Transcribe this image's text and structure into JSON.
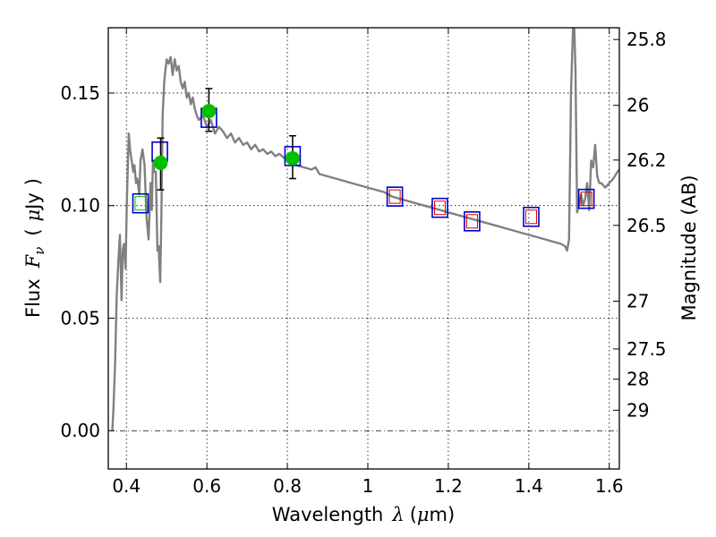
{
  "chart_data": {
    "type": "scatter",
    "xlabel": "Wavelength  λ (μm)",
    "ylabel": "Flux  F_ν  ( μJy )",
    "ylabel_parts": {
      "flux": "Flux",
      "f": "F",
      "nu": "ν",
      "unit_open": "(",
      "mu": "μ",
      "unit": "Jy",
      "unit_close": ")"
    },
    "xlabel_parts": {
      "text": "Wavelength",
      "lambda": "λ",
      "mu": "μ",
      "open": "(",
      "unit": "m)"
    },
    "y2label": "Magnitude (AB)",
    "xlim": [
      0.355,
      1.625
    ],
    "ylim": [
      -0.017,
      0.179
    ],
    "grid": "dotted",
    "x_ticks": [
      0.4,
      0.6,
      0.8,
      1.0,
      1.2,
      1.4,
      1.6
    ],
    "x_tick_labels": [
      "0.4",
      "0.6",
      "0.8",
      "1",
      "1.2",
      "1.4",
      "1.6"
    ],
    "y_ticks": [
      0.0,
      0.05,
      0.1,
      0.15
    ],
    "y_tick_labels": [
      "0.00",
      "0.05",
      "0.10",
      "0.15"
    ],
    "mag_ticks": [
      25.8,
      26,
      26.2,
      26.5,
      27,
      27.5,
      28,
      29
    ],
    "mag_tick_labels": [
      "25.8",
      "26",
      "26.2",
      "26.5",
      "27",
      "27.5",
      "28",
      "29"
    ],
    "series": [
      {
        "name": "model spectrum",
        "kind": "line",
        "color": "#808080",
        "x": [
          0.365,
          0.368,
          0.372,
          0.376,
          0.38,
          0.384,
          0.388,
          0.391,
          0.394,
          0.398,
          0.401,
          0.404,
          0.406,
          0.409,
          0.413,
          0.417,
          0.42,
          0.424,
          0.427,
          0.43,
          0.432,
          0.435,
          0.44,
          0.445,
          0.45,
          0.455,
          0.46,
          0.463,
          0.466,
          0.469,
          0.473,
          0.477,
          0.48,
          0.484,
          0.487,
          0.49,
          0.494,
          0.497,
          0.5,
          0.505,
          0.51,
          0.515,
          0.52,
          0.525,
          0.53,
          0.535,
          0.54,
          0.545,
          0.55,
          0.555,
          0.56,
          0.565,
          0.57,
          0.575,
          0.58,
          0.59,
          0.6,
          0.61,
          0.62,
          0.63,
          0.64,
          0.65,
          0.66,
          0.67,
          0.68,
          0.69,
          0.7,
          0.71,
          0.72,
          0.73,
          0.74,
          0.75,
          0.76,
          0.77,
          0.78,
          0.8,
          0.82,
          0.84,
          0.86,
          0.87,
          0.88,
          0.9,
          0.92,
          0.94,
          0.96,
          0.98,
          1.0,
          1.02,
          1.04,
          1.06,
          1.08,
          1.1,
          1.12,
          1.14,
          1.16,
          1.18,
          1.2,
          1.22,
          1.24,
          1.26,
          1.28,
          1.3,
          1.32,
          1.34,
          1.36,
          1.38,
          1.4,
          1.42,
          1.44,
          1.46,
          1.48,
          1.49,
          1.495,
          1.5,
          1.505,
          1.51,
          1.513,
          1.516,
          1.52,
          1.524,
          1.53,
          1.535,
          1.54,
          1.545,
          1.55,
          1.555,
          1.56,
          1.565,
          1.57,
          1.575,
          1.58,
          1.59,
          1.6,
          1.61,
          1.62,
          1.625
        ],
        "y": [
          0.0,
          0.01,
          0.03,
          0.06,
          0.075,
          0.087,
          0.058,
          0.08,
          0.083,
          0.072,
          0.101,
          0.12,
          0.132,
          0.125,
          0.12,
          0.115,
          0.118,
          0.11,
          0.112,
          0.108,
          0.105,
          0.12,
          0.125,
          0.118,
          0.095,
          0.085,
          0.11,
          0.098,
          0.12,
          0.115,
          0.115,
          0.08,
          0.082,
          0.066,
          0.095,
          0.14,
          0.155,
          0.16,
          0.165,
          0.163,
          0.166,
          0.158,
          0.165,
          0.16,
          0.162,
          0.155,
          0.152,
          0.155,
          0.148,
          0.15,
          0.145,
          0.148,
          0.143,
          0.14,
          0.138,
          0.14,
          0.135,
          0.138,
          0.132,
          0.135,
          0.133,
          0.13,
          0.132,
          0.128,
          0.13,
          0.127,
          0.128,
          0.125,
          0.127,
          0.124,
          0.125,
          0.123,
          0.124,
          0.122,
          0.123,
          0.12,
          0.118,
          0.117,
          0.116,
          0.117,
          0.114,
          0.113,
          0.112,
          0.111,
          0.11,
          0.109,
          0.108,
          0.107,
          0.106,
          0.104,
          0.103,
          0.102,
          0.101,
          0.1,
          0.099,
          0.098,
          0.097,
          0.096,
          0.095,
          0.094,
          0.093,
          0.092,
          0.091,
          0.09,
          0.089,
          0.088,
          0.087,
          0.086,
          0.085,
          0.084,
          0.083,
          0.082,
          0.08,
          0.085,
          0.15,
          0.18,
          0.18,
          0.16,
          0.097,
          0.1,
          0.105,
          0.1,
          0.103,
          0.11,
          0.098,
          0.12,
          0.117,
          0.127,
          0.113,
          0.11,
          0.11,
          0.108,
          0.11,
          0.112,
          0.115,
          0.116
        ]
      },
      {
        "name": "observed (green)",
        "kind": "points",
        "color": "#00c000",
        "x": [
          0.485,
          0.605,
          0.813
        ],
        "y": [
          0.119,
          0.142,
          0.121
        ],
        "yerr_low": [
          0.012,
          0.009,
          0.009
        ],
        "yerr_high": [
          0.011,
          0.01,
          0.01
        ]
      },
      {
        "name": "model photometry (blue boxes)",
        "kind": "boxes",
        "color": "#0000cc",
        "x": [
          0.435,
          0.483,
          0.605,
          0.813,
          1.067,
          1.179,
          1.259,
          1.406,
          1.543
        ],
        "y": [
          0.101,
          0.124,
          0.139,
          0.122,
          0.104,
          0.099,
          0.093,
          0.095,
          0.103
        ]
      },
      {
        "name": "model (green box)",
        "kind": "boxes",
        "color": "#00c000",
        "x": [
          0.435
        ],
        "y": [
          0.101
        ]
      },
      {
        "name": "model (red boxes)",
        "kind": "boxes",
        "color": "#dd0000",
        "x": [
          1.067,
          1.179,
          1.259,
          1.406,
          1.543
        ],
        "y": [
          0.104,
          0.099,
          0.093,
          0.095,
          0.103
        ]
      }
    ]
  }
}
